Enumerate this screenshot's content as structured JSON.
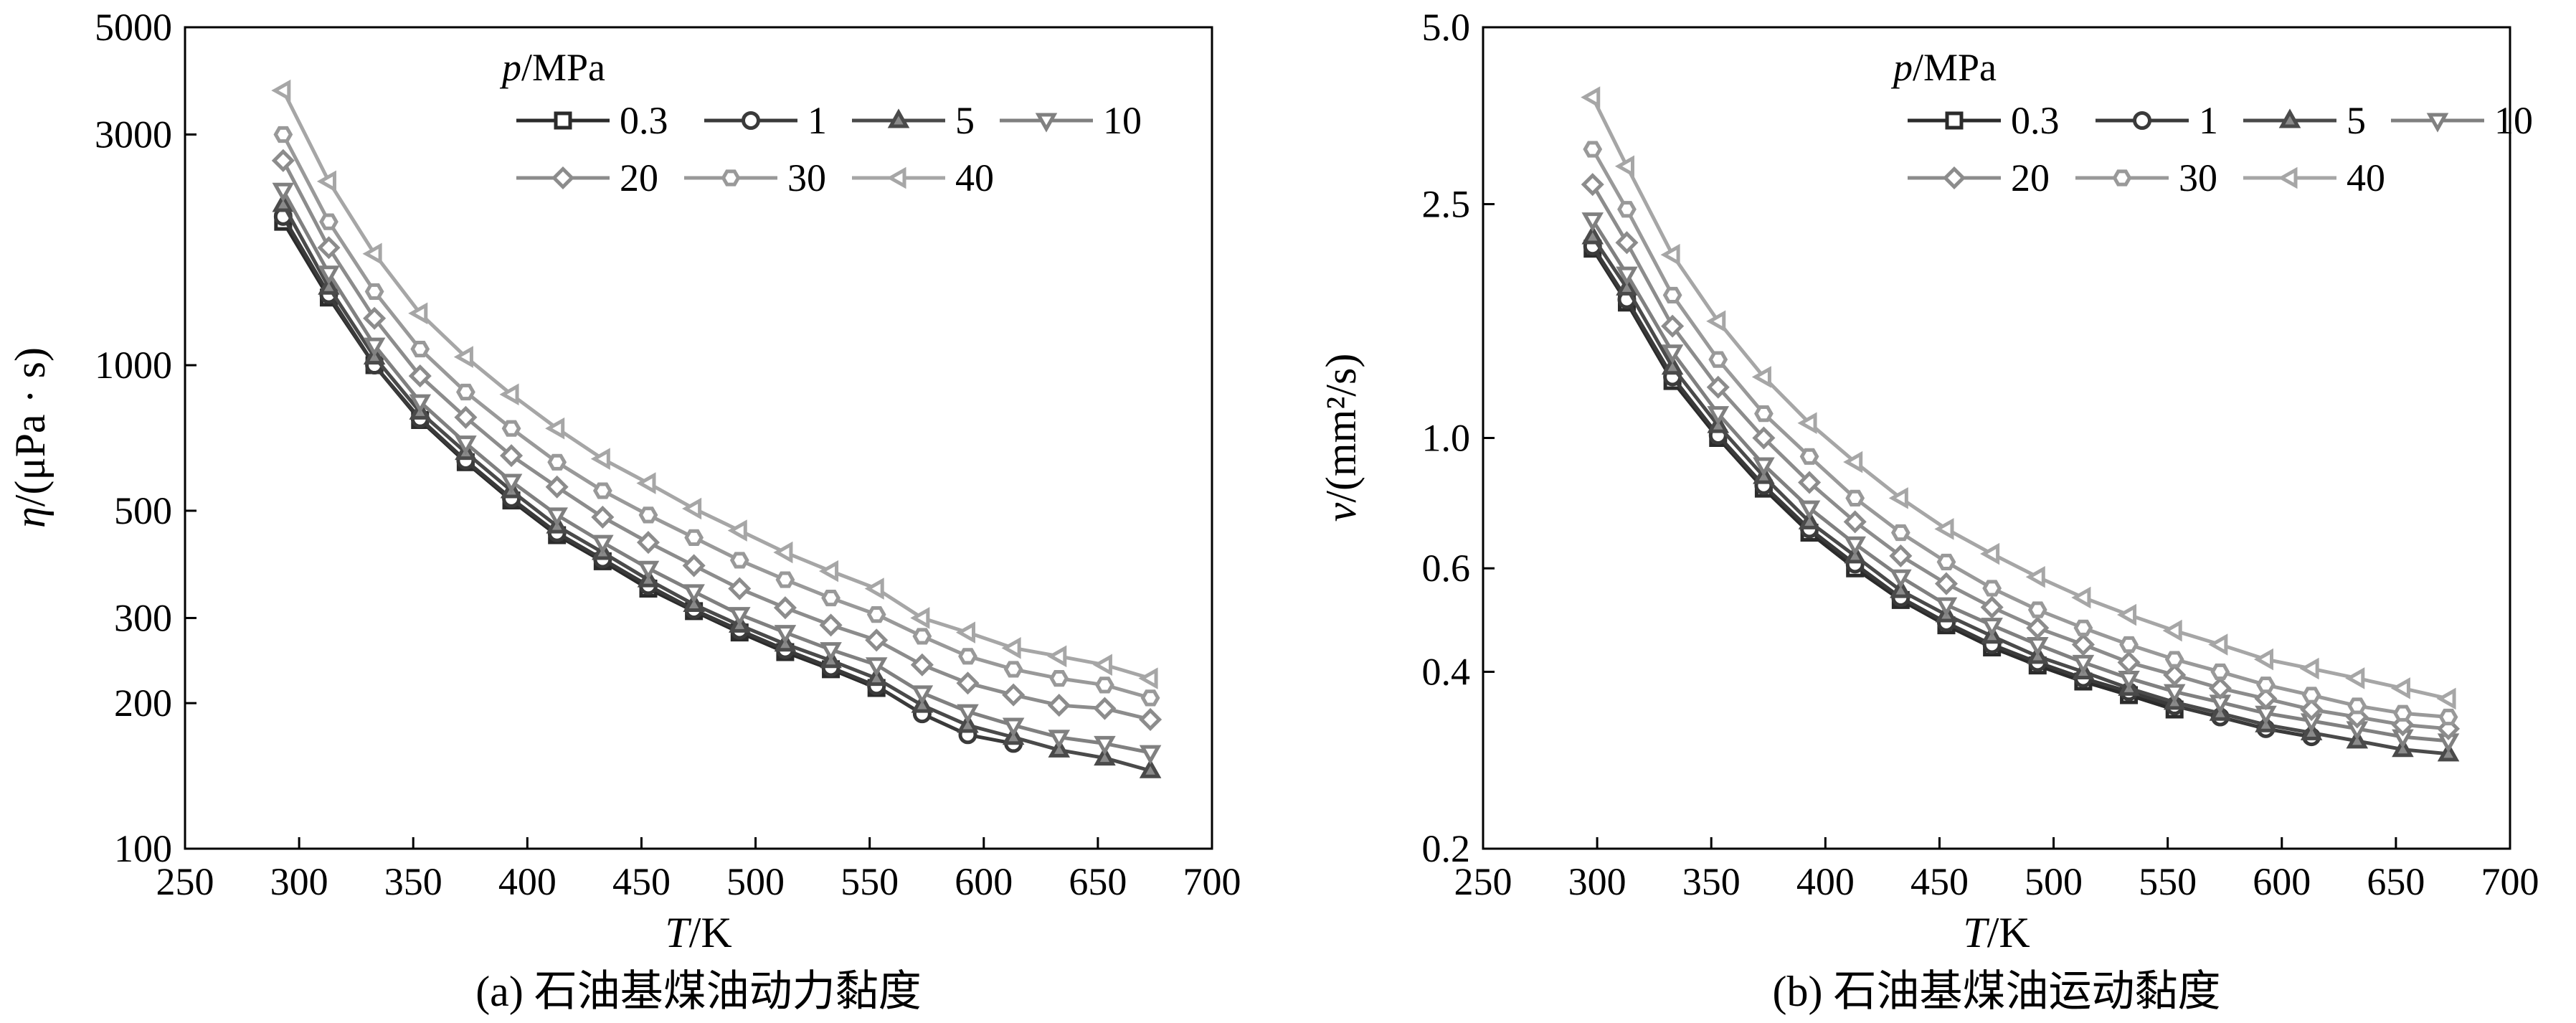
{
  "chart_data": [
    {
      "type": "line",
      "caption": "(a) 石油基煤油动力黏度",
      "xlabel_var": "T",
      "xlabel_unit": "/K",
      "ylabel_var": "η",
      "ylabel_unit": "/(μPa · s)",
      "xlim": [
        250,
        700
      ],
      "ylim": [
        100,
        5000
      ],
      "yscale": "log",
      "xticks": [
        "250",
        "300",
        "350",
        "400",
        "450",
        "500",
        "550",
        "600",
        "650",
        "700"
      ],
      "yticks": [
        "100",
        "200",
        "300",
        "500",
        "1000",
        "3000",
        "5000"
      ],
      "grid": false,
      "legend_title_var": "p",
      "legend_title_unit": "/MPa",
      "legend_position": "top-right",
      "x": [
        293,
        313,
        333,
        353,
        373,
        393,
        413,
        433,
        453,
        473,
        493,
        513,
        533,
        553,
        573,
        593,
        613,
        633,
        653,
        673
      ],
      "series": [
        {
          "name": "0.3",
          "marker": "square",
          "color": "#2b2b2b",
          "values": [
            1980,
            1380,
            1000,
            770,
            630,
            525,
            445,
            393,
            345,
            310,
            280,
            255,
            235,
            215,
            null,
            null,
            null,
            null,
            null,
            null
          ]
        },
        {
          "name": "1",
          "marker": "circle",
          "color": "#3a3a3a",
          "values": [
            2030,
            1400,
            1000,
            775,
            635,
            530,
            450,
            397,
            350,
            312,
            283,
            258,
            237,
            217,
            190,
            172,
            165,
            null,
            null,
            null
          ]
        },
        {
          "name": "5",
          "marker": "triangle-up",
          "color": "#4a4a4a",
          "values": [
            2150,
            1450,
            1040,
            800,
            660,
            550,
            465,
            410,
            360,
            320,
            290,
            265,
            245,
            225,
            198,
            180,
            170,
            160,
            154,
            145
          ]
        },
        {
          "name": "10",
          "marker": "triangle-down",
          "color": "#808080",
          "values": [
            2300,
            1550,
            1100,
            840,
            690,
            575,
            490,
            430,
            380,
            340,
            305,
            280,
            258,
            240,
            210,
            192,
            180,
            170,
            165,
            158
          ]
        },
        {
          "name": "20",
          "marker": "diamond",
          "color": "#8c8c8c",
          "values": [
            2650,
            1750,
            1250,
            950,
            780,
            650,
            560,
            485,
            430,
            385,
            345,
            315,
            290,
            270,
            240,
            220,
            208,
            198,
            195,
            185
          ]
        },
        {
          "name": "30",
          "marker": "hexagon",
          "color": "#999999",
          "values": [
            3000,
            1980,
            1420,
            1080,
            880,
            740,
            630,
            550,
            490,
            440,
            395,
            360,
            330,
            305,
            275,
            250,
            235,
            225,
            218,
            205
          ]
        },
        {
          "name": "40",
          "marker": "triangle-left",
          "color": "#a6a6a6",
          "values": [
            3700,
            2400,
            1700,
            1280,
            1040,
            870,
            740,
            640,
            570,
            505,
            455,
            410,
            375,
            345,
            300,
            280,
            260,
            250,
            240,
            225
          ]
        }
      ]
    },
    {
      "type": "line",
      "caption": "(b) 石油基煤油运动黏度",
      "xlabel_var": "T",
      "xlabel_unit": "/K",
      "ylabel_var": "ν",
      "ylabel_unit": "/(mm²/s)",
      "xlim": [
        250,
        700
      ],
      "ylim": [
        0.2,
        5.0
      ],
      "yscale": "log",
      "xticks": [
        "250",
        "300",
        "350",
        "400",
        "450",
        "500",
        "550",
        "600",
        "650",
        "700"
      ],
      "yticks": [
        "0.2",
        "0.4",
        "0.6",
        "1.0",
        "2.5",
        "5.0"
      ],
      "grid": false,
      "legend_title_var": "p",
      "legend_title_unit": "/MPa",
      "legend_position": "top-right",
      "x": [
        298,
        313,
        333,
        353,
        373,
        393,
        413,
        433,
        453,
        473,
        493,
        513,
        533,
        553,
        573,
        593,
        613,
        633,
        653,
        673
      ],
      "series": [
        {
          "name": "0.3",
          "marker": "square",
          "color": "#2b2b2b",
          "values": [
            2.1,
            1.7,
            1.25,
            1.0,
            0.82,
            0.69,
            0.6,
            0.53,
            0.48,
            0.44,
            0.41,
            0.385,
            0.365,
            0.345,
            null,
            null,
            null,
            null,
            null,
            null
          ]
        },
        {
          "name": "1",
          "marker": "circle",
          "color": "#3a3a3a",
          "values": [
            2.12,
            1.72,
            1.27,
            1.01,
            0.83,
            0.7,
            0.61,
            0.535,
            0.485,
            0.445,
            0.415,
            0.39,
            0.37,
            0.35,
            0.335,
            0.32,
            0.31,
            null,
            null,
            null
          ]
        },
        {
          "name": "5",
          "marker": "triangle-up",
          "color": "#4a4a4a",
          "values": [
            2.2,
            1.8,
            1.32,
            1.05,
            0.86,
            0.72,
            0.63,
            0.55,
            0.5,
            0.46,
            0.425,
            0.4,
            0.375,
            0.355,
            0.34,
            0.325,
            0.315,
            0.305,
            0.295,
            0.29
          ]
        },
        {
          "name": "10",
          "marker": "triangle-down",
          "color": "#808080",
          "values": [
            2.35,
            1.9,
            1.4,
            1.1,
            0.9,
            0.76,
            0.66,
            0.58,
            0.52,
            0.48,
            0.445,
            0.415,
            0.39,
            0.37,
            0.355,
            0.34,
            0.33,
            0.32,
            0.31,
            0.305
          ]
        },
        {
          "name": "20",
          "marker": "diamond",
          "color": "#8c8c8c",
          "values": [
            2.7,
            2.15,
            1.55,
            1.22,
            1.0,
            0.84,
            0.72,
            0.63,
            0.565,
            0.515,
            0.475,
            0.445,
            0.415,
            0.395,
            0.375,
            0.36,
            0.345,
            0.335,
            0.325,
            0.32
          ]
        },
        {
          "name": "30",
          "marker": "hexagon",
          "color": "#999999",
          "values": [
            3.1,
            2.45,
            1.75,
            1.36,
            1.1,
            0.93,
            0.79,
            0.69,
            0.615,
            0.555,
            0.51,
            0.475,
            0.445,
            0.42,
            0.4,
            0.38,
            0.365,
            0.35,
            0.34,
            0.335
          ]
        },
        {
          "name": "40",
          "marker": "triangle-left",
          "color": "#a6a6a6",
          "values": [
            3.8,
            2.9,
            2.05,
            1.58,
            1.27,
            1.06,
            0.91,
            0.79,
            0.7,
            0.635,
            0.58,
            0.535,
            0.5,
            0.47,
            0.445,
            0.42,
            0.405,
            0.39,
            0.375,
            0.36
          ]
        }
      ]
    }
  ]
}
